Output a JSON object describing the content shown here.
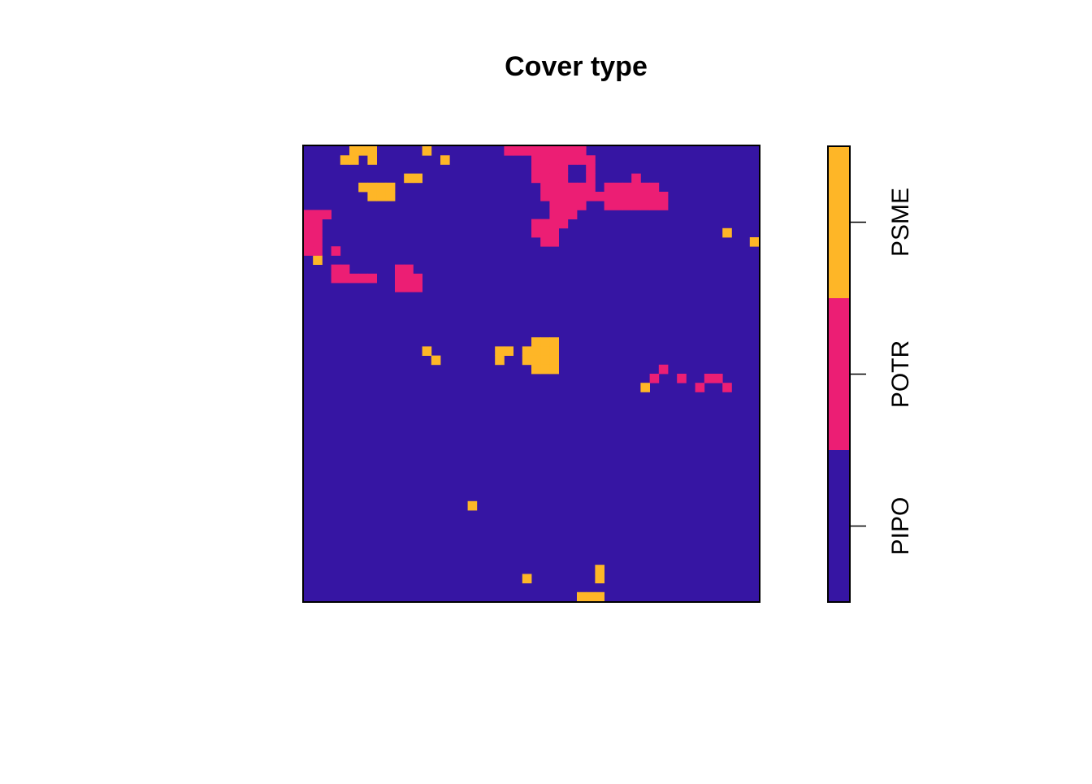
{
  "chart_data": {
    "type": "heatmap",
    "title": "Cover type",
    "xlabel": "",
    "ylabel": "",
    "grid": false,
    "legend_position": "right",
    "categories": [
      {
        "code": 1,
        "label": "PIPO",
        "color": "#3615A3"
      },
      {
        "code": 2,
        "label": "POTR",
        "color": "#EC1E74"
      },
      {
        "code": 3,
        "label": "PSME",
        "color": "#FEB627"
      }
    ],
    "background_category": 1,
    "grid_size": {
      "rows": 50,
      "cols": 50
    },
    "patches": [
      {
        "code": 3,
        "cells": [
          [
            0,
            5
          ],
          [
            0,
            6
          ],
          [
            0,
            7
          ],
          [
            1,
            4
          ],
          [
            1,
            5
          ],
          [
            1,
            7
          ],
          [
            0,
            13
          ],
          [
            1,
            15
          ],
          [
            3,
            11
          ],
          [
            3,
            12
          ],
          [
            4,
            6
          ],
          [
            4,
            7
          ],
          [
            4,
            8
          ],
          [
            4,
            9
          ],
          [
            5,
            7
          ],
          [
            5,
            8
          ],
          [
            5,
            9
          ],
          [
            9,
            46
          ],
          [
            10,
            49
          ],
          [
            12,
            1
          ],
          [
            22,
            13
          ],
          [
            23,
            14
          ],
          [
            22,
            21
          ],
          [
            22,
            22
          ],
          [
            23,
            21
          ],
          [
            21,
            25
          ],
          [
            21,
            26
          ],
          [
            21,
            27
          ],
          [
            22,
            24
          ],
          [
            22,
            25
          ],
          [
            22,
            26
          ],
          [
            22,
            27
          ],
          [
            23,
            24
          ],
          [
            23,
            25
          ],
          [
            23,
            26
          ],
          [
            23,
            27
          ],
          [
            24,
            25
          ],
          [
            24,
            26
          ],
          [
            24,
            27
          ],
          [
            26,
            37
          ],
          [
            39,
            18
          ],
          [
            46,
            32
          ],
          [
            47,
            24
          ],
          [
            47,
            32
          ],
          [
            49,
            30
          ],
          [
            49,
            31
          ],
          [
            49,
            32
          ]
        ]
      },
      {
        "code": 2,
        "cells": [
          [
            0,
            22
          ],
          [
            0,
            23
          ],
          [
            0,
            24
          ],
          [
            0,
            25
          ],
          [
            0,
            26
          ],
          [
            0,
            27
          ],
          [
            0,
            28
          ],
          [
            0,
            29
          ],
          [
            0,
            30
          ],
          [
            1,
            25
          ],
          [
            1,
            26
          ],
          [
            1,
            27
          ],
          [
            1,
            28
          ],
          [
            1,
            29
          ],
          [
            1,
            30
          ],
          [
            1,
            31
          ],
          [
            2,
            25
          ],
          [
            2,
            26
          ],
          [
            2,
            27
          ],
          [
            2,
            28
          ],
          [
            2,
            31
          ],
          [
            3,
            25
          ],
          [
            3,
            26
          ],
          [
            3,
            27
          ],
          [
            3,
            28
          ],
          [
            3,
            31
          ],
          [
            4,
            26
          ],
          [
            4,
            27
          ],
          [
            4,
            28
          ],
          [
            4,
            29
          ],
          [
            4,
            30
          ],
          [
            4,
            31
          ],
          [
            5,
            26
          ],
          [
            5,
            27
          ],
          [
            5,
            28
          ],
          [
            5,
            29
          ],
          [
            5,
            30
          ],
          [
            5,
            31
          ],
          [
            6,
            27
          ],
          [
            6,
            28
          ],
          [
            6,
            29
          ],
          [
            6,
            30
          ],
          [
            7,
            27
          ],
          [
            7,
            28
          ],
          [
            7,
            29
          ],
          [
            8,
            25
          ],
          [
            8,
            26
          ],
          [
            8,
            27
          ],
          [
            8,
            28
          ],
          [
            9,
            25
          ],
          [
            9,
            26
          ],
          [
            9,
            27
          ],
          [
            10,
            26
          ],
          [
            10,
            27
          ],
          [
            3,
            36
          ],
          [
            4,
            33
          ],
          [
            4,
            34
          ],
          [
            4,
            35
          ],
          [
            4,
            36
          ],
          [
            4,
            37
          ],
          [
            4,
            38
          ],
          [
            5,
            32
          ],
          [
            5,
            33
          ],
          [
            5,
            34
          ],
          [
            5,
            35
          ],
          [
            5,
            36
          ],
          [
            5,
            37
          ],
          [
            5,
            38
          ],
          [
            5,
            39
          ],
          [
            6,
            33
          ],
          [
            6,
            34
          ],
          [
            6,
            35
          ],
          [
            6,
            36
          ],
          [
            6,
            37
          ],
          [
            6,
            38
          ],
          [
            6,
            39
          ],
          [
            7,
            0
          ],
          [
            7,
            1
          ],
          [
            7,
            2
          ],
          [
            8,
            0
          ],
          [
            8,
            1
          ],
          [
            9,
            0
          ],
          [
            9,
            1
          ],
          [
            10,
            0
          ],
          [
            10,
            1
          ],
          [
            11,
            0
          ],
          [
            11,
            1
          ],
          [
            11,
            3
          ],
          [
            13,
            3
          ],
          [
            13,
            4
          ],
          [
            14,
            3
          ],
          [
            14,
            4
          ],
          [
            14,
            5
          ],
          [
            14,
            6
          ],
          [
            14,
            7
          ],
          [
            13,
            10
          ],
          [
            13,
            11
          ],
          [
            14,
            10
          ],
          [
            14,
            11
          ],
          [
            14,
            12
          ],
          [
            15,
            10
          ],
          [
            15,
            11
          ],
          [
            15,
            12
          ],
          [
            24,
            39
          ],
          [
            25,
            38
          ],
          [
            25,
            41
          ],
          [
            25,
            44
          ],
          [
            25,
            45
          ],
          [
            26,
            43
          ],
          [
            26,
            46
          ]
        ]
      }
    ],
    "legend_ticks": [
      "PIPO",
      "POTR",
      "PSME"
    ]
  }
}
